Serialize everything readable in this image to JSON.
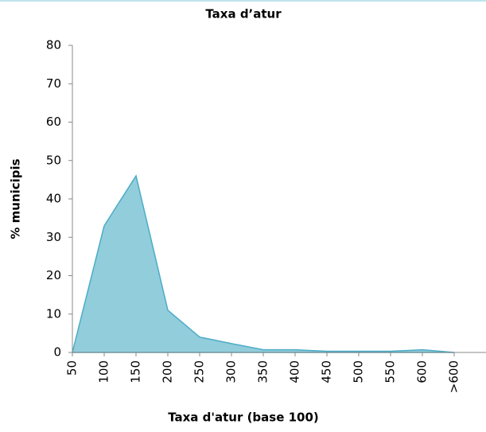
{
  "chart_data": {
    "type": "area",
    "title": "Taxa d’atur",
    "x_label": "Taxa d'atur (base 100)",
    "y_label": "% municipis",
    "categories": [
      "50",
      "100",
      "150",
      "200",
      "250",
      "300",
      "350",
      "400",
      "450",
      "500",
      "550",
      "600",
      ">600"
    ],
    "values": [
      0,
      33,
      46,
      11,
      4,
      2.3,
      0.7,
      0.7,
      0.3,
      0.3,
      0.3,
      0.7,
      0
    ],
    "color": "#92cddc",
    "line_color": "#4bacc6",
    "ylim": [
      0,
      80
    ],
    "yticks": [
      0,
      10,
      20,
      30,
      40,
      50,
      60,
      70,
      80
    ],
    "grid": false
  }
}
